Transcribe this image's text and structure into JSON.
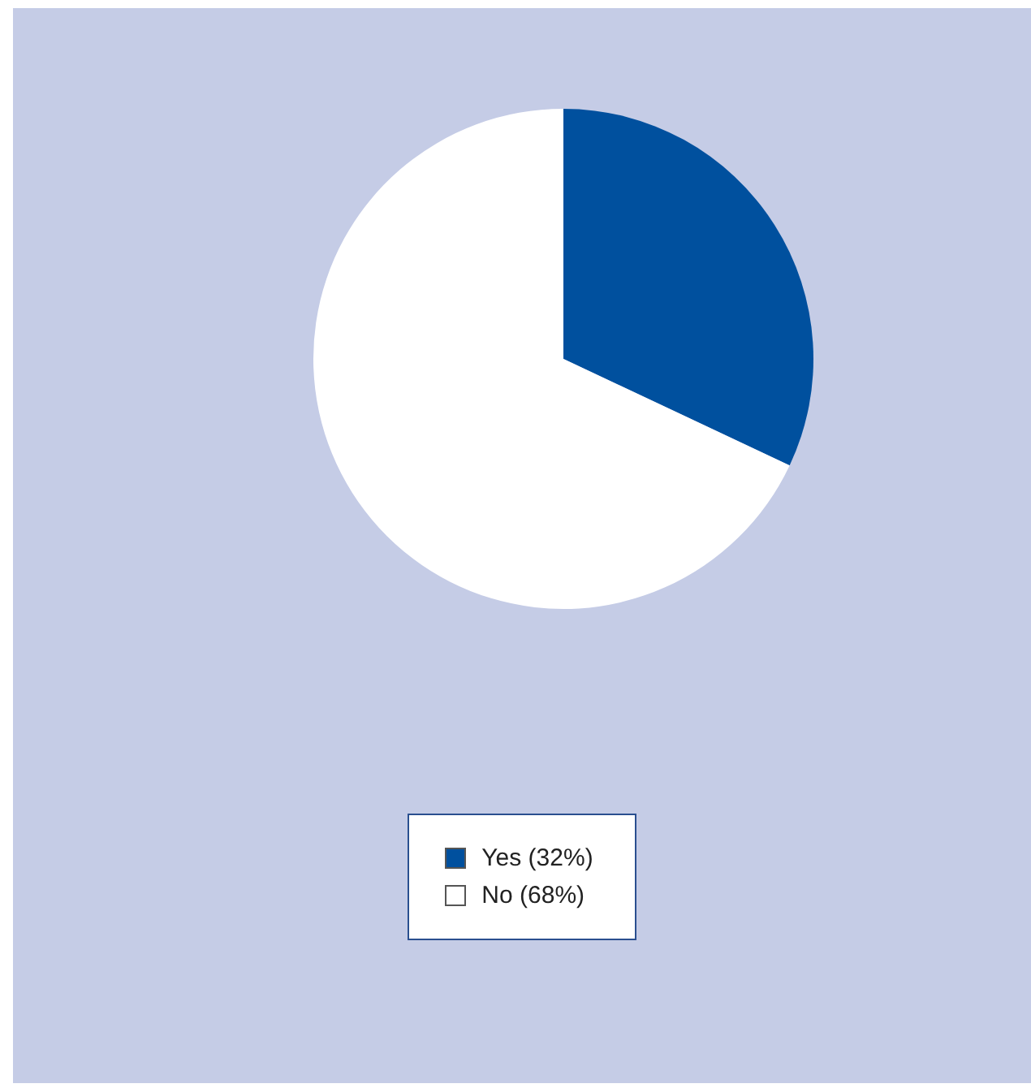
{
  "chart_data": {
    "type": "pie",
    "categories": [
      "Yes (32%)",
      "No (68%)"
    ],
    "values": [
      32,
      68
    ],
    "colors": [
      "#00509e",
      "#ffffff"
    ],
    "legend": "bottom"
  }
}
